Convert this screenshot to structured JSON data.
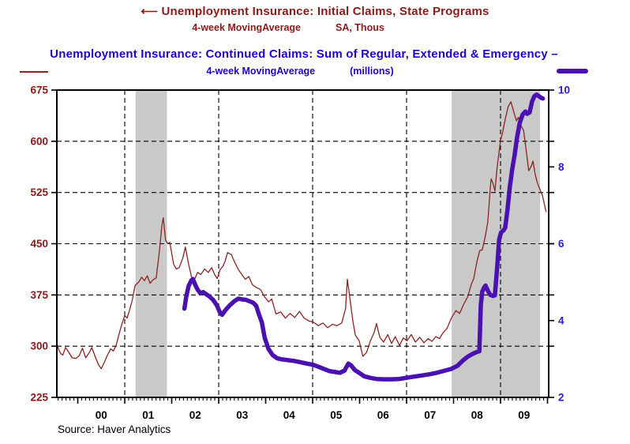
{
  "header": {
    "title_initial": "⟵ Unemployment Insurance: Initial Claims, State Programs",
    "subtitle_initial_1": "4-week MovingAverage",
    "subtitle_initial_2": "SA, Thous",
    "title_continued": "Unemployment Insurance: Continued Claims: Sum of Regular, Extended & Emergency –",
    "subtitle_continued_1": "4-week MovingAverage",
    "subtitle_continued_2": "(millions)",
    "red_color": "#8B1A1A",
    "blue_color": "#2200CC"
  },
  "footer": {
    "source": "Source: Haver Analytics"
  },
  "chart_data": {
    "type": "line",
    "title": "Unemployment Insurance: Initial Claims vs Continued Claims",
    "grid": "dashed",
    "band_color": "#C9C9C9",
    "recession_bands": [
      [
        2001.23,
        2001.9
      ],
      [
        2007.96,
        2009.84
      ]
    ],
    "left_axis": {
      "label": "Initial Claims, SA, Thous",
      "range": [
        225,
        675
      ],
      "ticks": [
        675,
        600,
        525,
        450,
        375,
        300,
        225
      ],
      "gridlines": [
        600,
        525,
        450,
        375,
        300
      ],
      "color": "#8B1A1A"
    },
    "right_axis": {
      "label": "Continued Claims, millions",
      "range": [
        2,
        10
      ],
      "ticks": [
        10,
        8,
        6,
        4,
        2
      ],
      "color": "#2B1BCC"
    },
    "x_axis": {
      "range": [
        1999.55,
        2010.03
      ],
      "tick_labels": [
        "00",
        "01",
        "02",
        "03",
        "04",
        "05",
        "06",
        "07",
        "08",
        "09"
      ],
      "major_tick_years": [
        2000,
        2001,
        2002,
        2003,
        2004,
        2005,
        2006,
        2007,
        2008,
        2009,
        2010
      ],
      "gridline_years": [
        2001,
        2003,
        2005,
        2007,
        2009
      ],
      "minor_ticks": "monthly"
    },
    "series": [
      {
        "name": "Initial Claims, State Programs (4-week MA, SA, Thous)",
        "axis": "left",
        "color": "#8B2424",
        "width": 1.3,
        "points": [
          [
            1999.56,
            303
          ],
          [
            1999.6,
            294
          ],
          [
            1999.64,
            289
          ],
          [
            1999.68,
            287
          ],
          [
            1999.74,
            298
          ],
          [
            1999.8,
            292
          ],
          [
            1999.88,
            283
          ],
          [
            1999.96,
            282
          ],
          [
            2000.03,
            286
          ],
          [
            2000.1,
            297
          ],
          [
            2000.17,
            283
          ],
          [
            2000.24,
            290
          ],
          [
            2000.3,
            298
          ],
          [
            2000.38,
            283
          ],
          [
            2000.44,
            273
          ],
          [
            2000.5,
            267
          ],
          [
            2000.57,
            277
          ],
          [
            2000.64,
            288
          ],
          [
            2000.7,
            296
          ],
          [
            2000.76,
            293
          ],
          [
            2000.82,
            302
          ],
          [
            2000.88,
            318
          ],
          [
            2000.93,
            330
          ],
          [
            2001.0,
            345
          ],
          [
            2001.05,
            341
          ],
          [
            2001.1,
            352
          ],
          [
            2001.16,
            367
          ],
          [
            2001.22,
            389
          ],
          [
            2001.3,
            394
          ],
          [
            2001.36,
            401
          ],
          [
            2001.42,
            396
          ],
          [
            2001.48,
            403
          ],
          [
            2001.54,
            392
          ],
          [
            2001.6,
            397
          ],
          [
            2001.67,
            400
          ],
          [
            2001.74,
            440
          ],
          [
            2001.79,
            476
          ],
          [
            2001.82,
            488
          ],
          [
            2001.87,
            455
          ],
          [
            2001.92,
            450
          ],
          [
            2001.96,
            452
          ],
          [
            2002.04,
            420
          ],
          [
            2002.1,
            413
          ],
          [
            2002.16,
            415
          ],
          [
            2002.24,
            430
          ],
          [
            2002.29,
            445
          ],
          [
            2002.36,
            420
          ],
          [
            2002.43,
            399
          ],
          [
            2002.47,
            395
          ],
          [
            2002.55,
            408
          ],
          [
            2002.62,
            405
          ],
          [
            2002.7,
            413
          ],
          [
            2002.78,
            408
          ],
          [
            2002.85,
            415
          ],
          [
            2002.92,
            404
          ],
          [
            2002.97,
            399
          ],
          [
            2003.03,
            412
          ],
          [
            2003.09,
            417
          ],
          [
            2003.14,
            425
          ],
          [
            2003.19,
            437
          ],
          [
            2003.27,
            434
          ],
          [
            2003.34,
            423
          ],
          [
            2003.42,
            412
          ],
          [
            2003.5,
            404
          ],
          [
            2003.57,
            398
          ],
          [
            2003.64,
            402
          ],
          [
            2003.72,
            390
          ],
          [
            2003.8,
            386
          ],
          [
            2003.89,
            383
          ],
          [
            2003.97,
            373
          ],
          [
            2004.06,
            365
          ],
          [
            2004.13,
            369
          ],
          [
            2004.22,
            347
          ],
          [
            2004.32,
            350
          ],
          [
            2004.42,
            341
          ],
          [
            2004.52,
            348
          ],
          [
            2004.62,
            342
          ],
          [
            2004.72,
            351
          ],
          [
            2004.82,
            341
          ],
          [
            2004.92,
            337
          ],
          [
            2005.02,
            335
          ],
          [
            2005.12,
            330
          ],
          [
            2005.22,
            334
          ],
          [
            2005.32,
            327
          ],
          [
            2005.42,
            332
          ],
          [
            2005.52,
            330
          ],
          [
            2005.62,
            334
          ],
          [
            2005.7,
            355
          ],
          [
            2005.74,
            398
          ],
          [
            2005.79,
            372
          ],
          [
            2005.86,
            335
          ],
          [
            2005.91,
            316
          ],
          [
            2005.99,
            308
          ],
          [
            2006.07,
            285
          ],
          [
            2006.15,
            291
          ],
          [
            2006.23,
            308
          ],
          [
            2006.31,
            320
          ],
          [
            2006.36,
            333
          ],
          [
            2006.43,
            313
          ],
          [
            2006.51,
            306
          ],
          [
            2006.6,
            317
          ],
          [
            2006.68,
            304
          ],
          [
            2006.76,
            314
          ],
          [
            2006.85,
            301
          ],
          [
            2006.93,
            312
          ],
          [
            2007.01,
            308
          ],
          [
            2007.1,
            317
          ],
          [
            2007.19,
            306
          ],
          [
            2007.28,
            313
          ],
          [
            2007.37,
            305
          ],
          [
            2007.46,
            311
          ],
          [
            2007.54,
            307
          ],
          [
            2007.62,
            314
          ],
          [
            2007.7,
            311
          ],
          [
            2007.78,
            320
          ],
          [
            2007.86,
            326
          ],
          [
            2007.96,
            342
          ],
          [
            2008.05,
            352
          ],
          [
            2008.13,
            348
          ],
          [
            2008.22,
            362
          ],
          [
            2008.3,
            372
          ],
          [
            2008.38,
            391
          ],
          [
            2008.43,
            399
          ],
          [
            2008.5,
            425
          ],
          [
            2008.56,
            440
          ],
          [
            2008.61,
            441
          ],
          [
            2008.67,
            459
          ],
          [
            2008.73,
            482
          ],
          [
            2008.78,
            530
          ],
          [
            2008.8,
            545
          ],
          [
            2008.84,
            538
          ],
          [
            2008.88,
            527
          ],
          [
            2008.93,
            563
          ],
          [
            2009.0,
            601
          ],
          [
            2009.04,
            612
          ],
          [
            2009.1,
            632
          ],
          [
            2009.16,
            650
          ],
          [
            2009.22,
            658
          ],
          [
            2009.29,
            641
          ],
          [
            2009.34,
            630
          ],
          [
            2009.38,
            635
          ],
          [
            2009.44,
            622
          ],
          [
            2009.49,
            616
          ],
          [
            2009.55,
            585
          ],
          [
            2009.6,
            557
          ],
          [
            2009.65,
            563
          ],
          [
            2009.69,
            571
          ],
          [
            2009.74,
            551
          ],
          [
            2009.78,
            540
          ],
          [
            2009.83,
            531
          ],
          [
            2009.89,
            521
          ],
          [
            2009.94,
            506
          ],
          [
            2009.97,
            497
          ]
        ]
      },
      {
        "name": "Continued Claims: Sum of Regular, Extended & Emergency (4-week MA, millions)",
        "axis": "right",
        "color": "#4A10B0",
        "width": 5.5,
        "points": [
          [
            2002.27,
            4.31
          ],
          [
            2002.31,
            4.62
          ],
          [
            2002.36,
            4.9
          ],
          [
            2002.42,
            5.05
          ],
          [
            2002.45,
            5.08
          ],
          [
            2002.5,
            4.93
          ],
          [
            2002.55,
            4.81
          ],
          [
            2002.61,
            4.71
          ],
          [
            2002.67,
            4.74
          ],
          [
            2002.74,
            4.68
          ],
          [
            2002.8,
            4.63
          ],
          [
            2002.88,
            4.54
          ],
          [
            2002.96,
            4.4
          ],
          [
            2003.03,
            4.2
          ],
          [
            2003.07,
            4.15
          ],
          [
            2003.15,
            4.28
          ],
          [
            2003.24,
            4.4
          ],
          [
            2003.33,
            4.5
          ],
          [
            2003.42,
            4.57
          ],
          [
            2003.5,
            4.55
          ],
          [
            2003.58,
            4.54
          ],
          [
            2003.66,
            4.5
          ],
          [
            2003.74,
            4.46
          ],
          [
            2003.8,
            4.38
          ],
          [
            2003.86,
            4.15
          ],
          [
            2003.92,
            3.95
          ],
          [
            2003.98,
            3.55
          ],
          [
            2004.06,
            3.26
          ],
          [
            2004.15,
            3.1
          ],
          [
            2004.24,
            3.02
          ],
          [
            2004.35,
            2.99
          ],
          [
            2004.47,
            2.97
          ],
          [
            2004.6,
            2.95
          ],
          [
            2004.73,
            2.92
          ],
          [
            2004.87,
            2.88
          ],
          [
            2005.01,
            2.85
          ],
          [
            2005.14,
            2.79
          ],
          [
            2005.26,
            2.73
          ],
          [
            2005.37,
            2.68
          ],
          [
            2005.48,
            2.66
          ],
          [
            2005.58,
            2.64
          ],
          [
            2005.68,
            2.7
          ],
          [
            2005.76,
            2.88
          ],
          [
            2005.82,
            2.83
          ],
          [
            2005.9,
            2.71
          ],
          [
            2005.99,
            2.64
          ],
          [
            2006.1,
            2.55
          ],
          [
            2006.22,
            2.51
          ],
          [
            2006.36,
            2.48
          ],
          [
            2006.52,
            2.47
          ],
          [
            2006.68,
            2.47
          ],
          [
            2006.84,
            2.48
          ],
          [
            2007.0,
            2.51
          ],
          [
            2007.16,
            2.54
          ],
          [
            2007.32,
            2.57
          ],
          [
            2007.48,
            2.6
          ],
          [
            2007.64,
            2.64
          ],
          [
            2007.8,
            2.69
          ],
          [
            2007.95,
            2.74
          ],
          [
            2008.08,
            2.82
          ],
          [
            2008.19,
            2.95
          ],
          [
            2008.3,
            3.06
          ],
          [
            2008.4,
            3.13
          ],
          [
            2008.49,
            3.18
          ],
          [
            2008.55,
            3.2
          ],
          [
            2008.58,
            4.4
          ],
          [
            2008.61,
            4.75
          ],
          [
            2008.65,
            4.86
          ],
          [
            2008.68,
            4.91
          ],
          [
            2008.73,
            4.78
          ],
          [
            2008.78,
            4.67
          ],
          [
            2008.84,
            4.64
          ],
          [
            2008.88,
            4.66
          ],
          [
            2008.93,
            5.4
          ],
          [
            2008.97,
            6.1
          ],
          [
            2009.01,
            6.29
          ],
          [
            2009.07,
            6.36
          ],
          [
            2009.1,
            6.42
          ],
          [
            2009.15,
            6.9
          ],
          [
            2009.2,
            7.5
          ],
          [
            2009.25,
            7.95
          ],
          [
            2009.3,
            8.3
          ],
          [
            2009.35,
            8.75
          ],
          [
            2009.41,
            9.15
          ],
          [
            2009.47,
            9.36
          ],
          [
            2009.53,
            9.44
          ],
          [
            2009.57,
            9.38
          ],
          [
            2009.62,
            9.42
          ],
          [
            2009.67,
            9.7
          ],
          [
            2009.72,
            9.84
          ],
          [
            2009.77,
            9.88
          ],
          [
            2009.82,
            9.84
          ],
          [
            2009.86,
            9.8
          ],
          [
            2009.9,
            9.78
          ]
        ]
      }
    ]
  }
}
